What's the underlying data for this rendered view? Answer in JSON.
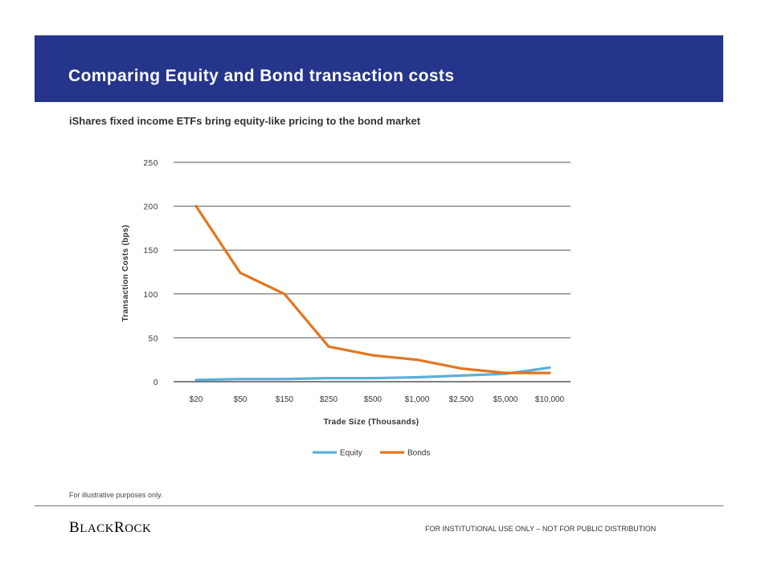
{
  "header": {
    "title": "Comparing Equity and Bond transaction costs",
    "subtitle": "iShares fixed income ETFs bring equity-like pricing to the bond market",
    "banner_color": "#25358b"
  },
  "chart_data": {
    "type": "line",
    "categories": [
      "$20",
      "$50",
      "$150",
      "$250",
      "$500",
      "$1,000",
      "$2,500",
      "$5,000",
      "$10,000"
    ],
    "series": [
      {
        "name": "Equity",
        "color": "#5bafd8",
        "values": [
          2,
          3,
          3,
          4,
          4,
          5,
          7,
          9,
          16
        ]
      },
      {
        "name": "Bonds",
        "color": "#e2761e",
        "values": [
          200,
          124,
          100,
          40,
          30,
          25,
          15,
          10,
          10
        ]
      }
    ],
    "xlabel": "Trade Size (Thousands)",
    "ylabel": "Transaction Costs (bps)",
    "ylim": [
      0,
      250
    ],
    "yticks": [
      "0",
      "50",
      "100",
      "150",
      "200",
      "250"
    ],
    "grid": true,
    "legend_position": "bottom-center"
  },
  "footer": {
    "note": "For illustrative purposes only.",
    "logo_text": "BlackRock",
    "disclaimer": "FOR INSTITUTIONAL  USE ONLY – NOT FOR PUBLIC DISTRIBUTION"
  }
}
